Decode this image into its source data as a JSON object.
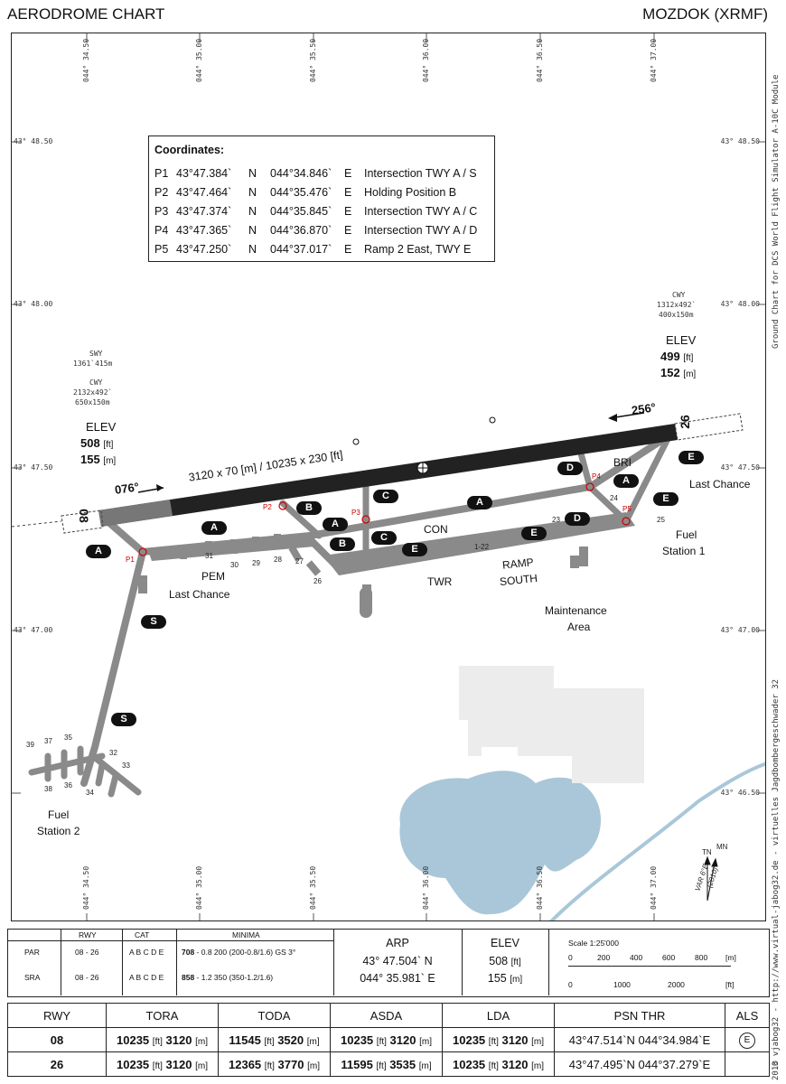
{
  "header": {
    "left": "AERODROME CHART",
    "right": "MOZDOK (XRMF)"
  },
  "side_text": "© vjabog32 - http://www.virtual-jabog32.de - virtuelles Jagdbombergeschwader 32",
  "side_text_right": "Ground Chart for DCS World Flight Simulator A-10C Module",
  "side_year": "2013",
  "lat_labels": [
    "43° 48.50",
    "43° 48.00",
    "43° 47.50",
    "43° 47.00",
    "43° 46.50"
  ],
  "lon_labels": [
    "044° 34.50",
    "044° 35.00",
    "044° 35.50",
    "044° 36.00",
    "044° 36.50",
    "044° 37.00"
  ],
  "coordinates": {
    "title": "Coordinates:",
    "rows": [
      {
        "id": "P1",
        "lat": "43°47.384`",
        "ns": "N",
        "lon": "044°34.846`",
        "ew": "E",
        "desc": "Intersection TWY A / S"
      },
      {
        "id": "P2",
        "lat": "43°47.464`",
        "ns": "N",
        "lon": "044°35.476`",
        "ew": "E",
        "desc": "Holding Position B"
      },
      {
        "id": "P3",
        "lat": "43°47.374`",
        "ns": "N",
        "lon": "044°35.845`",
        "ew": "E",
        "desc": "Intersection TWY A / C"
      },
      {
        "id": "P4",
        "lat": "43°47.365`",
        "ns": "N",
        "lon": "044°36.870`",
        "ew": "E",
        "desc": "Intersection TWY A / D"
      },
      {
        "id": "P5",
        "lat": "43°47.250`",
        "ns": "N",
        "lon": "044°37.017`",
        "ew": "E",
        "desc": "Ramp 2 East, TWY E"
      }
    ]
  },
  "runway": {
    "dims": "3120 x 70 [m] / 10235 x 230 [ft]",
    "hdg_west": "076°",
    "hdg_east": "256°",
    "num_west": "08",
    "num_east": "26"
  },
  "west_end": {
    "swy": "SWY",
    "swy_dim": "1361`415m",
    "cwy": "CWY",
    "cwy_dim1": "2132x492`",
    "cwy_dim2": "650x150m",
    "elev": "ELEV",
    "elev_ft": "508",
    "elev_m": "155",
    "ft": "[ft]",
    "m": "[m]"
  },
  "east_end": {
    "cwy": "CWY",
    "cwy_dim1": "1312x492`",
    "cwy_dim2": "400x150m",
    "elev": "ELEV",
    "elev_ft": "499",
    "elev_m": "152",
    "ft": "[ft]",
    "m": "[m]"
  },
  "taxiways": [
    "A",
    "A",
    "A",
    "A",
    "B",
    "B",
    "C",
    "C",
    "D",
    "D",
    "E",
    "E",
    "E",
    "E",
    "S",
    "S"
  ],
  "labels": {
    "bri": "BRI",
    "last_chance_e": "Last Chance",
    "fuel1_a": "Fuel",
    "fuel1_b": "Station 1",
    "con": "CON",
    "ramp_a": "RAMP",
    "ramp_b": "SOUTH",
    "twr": "TWR",
    "maint_a": "Maintenance",
    "maint_b": "Area",
    "pem": "PEM",
    "last_chance_w": "Last Chance",
    "fuel2_a": "Fuel",
    "fuel2_b": "Station 2",
    "tn": "TN",
    "mn": "MN",
    "var": "VAR 6°E",
    "var_year": "(2010)",
    "stand_122": "1-22"
  },
  "stands": [
    "31",
    "30",
    "29",
    "28",
    "27",
    "26",
    "23",
    "24",
    "25",
    "39",
    "37",
    "35",
    "38",
    "36",
    "34",
    "32",
    "33"
  ],
  "points": [
    "P1",
    "P2",
    "P3",
    "P4",
    "P5"
  ],
  "minima": {
    "headers": [
      "RWY",
      "CAT",
      "MINIMA"
    ],
    "rows": [
      {
        "type": "PAR",
        "rwy": "08 - 26",
        "cat": "A B C D E",
        "min_bold": "708",
        "min_rest": " - 0.8 200 (200-0.8/1.6) GS 3°"
      },
      {
        "type": "SRA",
        "rwy": "08 - 26",
        "cat": "A B C D E",
        "min_bold": "858",
        "min_rest": " - 1.2 350 (350-1.2/1.6)"
      }
    ],
    "arp_title": "ARP",
    "arp_lat": "43° 47.504` N",
    "arp_lon": "044° 35.981` E",
    "elev_title": "ELEV",
    "elev_ft": "508",
    "elev_m": "155",
    "ft": "[ft]",
    "m": "[m]",
    "scale_title": "Scale 1:25'000",
    "scale_m": [
      "0",
      "200",
      "400",
      "600",
      "800"
    ],
    "scale_ft": [
      "0",
      "1000",
      "2000"
    ],
    "unit_m": "[m]",
    "unit_ft": "[ft]"
  },
  "rwy_table": {
    "headers": [
      "RWY",
      "TORA",
      "TODA",
      "ASDA",
      "LDA",
      "PSN THR",
      "ALS"
    ],
    "rows": [
      {
        "rwy": "08",
        "tora_ft": "10235",
        "tora_m": "3120",
        "toda_ft": "11545",
        "toda_m": "3520",
        "asda_ft": "10235",
        "asda_m": "3120",
        "lda_ft": "10235",
        "lda_m": "3120",
        "thr": "43°47.514`N  044°34.984`E",
        "als": "E"
      },
      {
        "rwy": "26",
        "tora_ft": "10235",
        "tora_m": "3120",
        "toda_ft": "12365",
        "toda_m": "3770",
        "asda_ft": "11595",
        "asda_m": "3535",
        "lda_ft": "10235",
        "lda_m": "3120",
        "thr": "43°47.495`N  044°37.279`E",
        "als": ""
      }
    ],
    "ft": "[ft]",
    "m": "[m]"
  }
}
